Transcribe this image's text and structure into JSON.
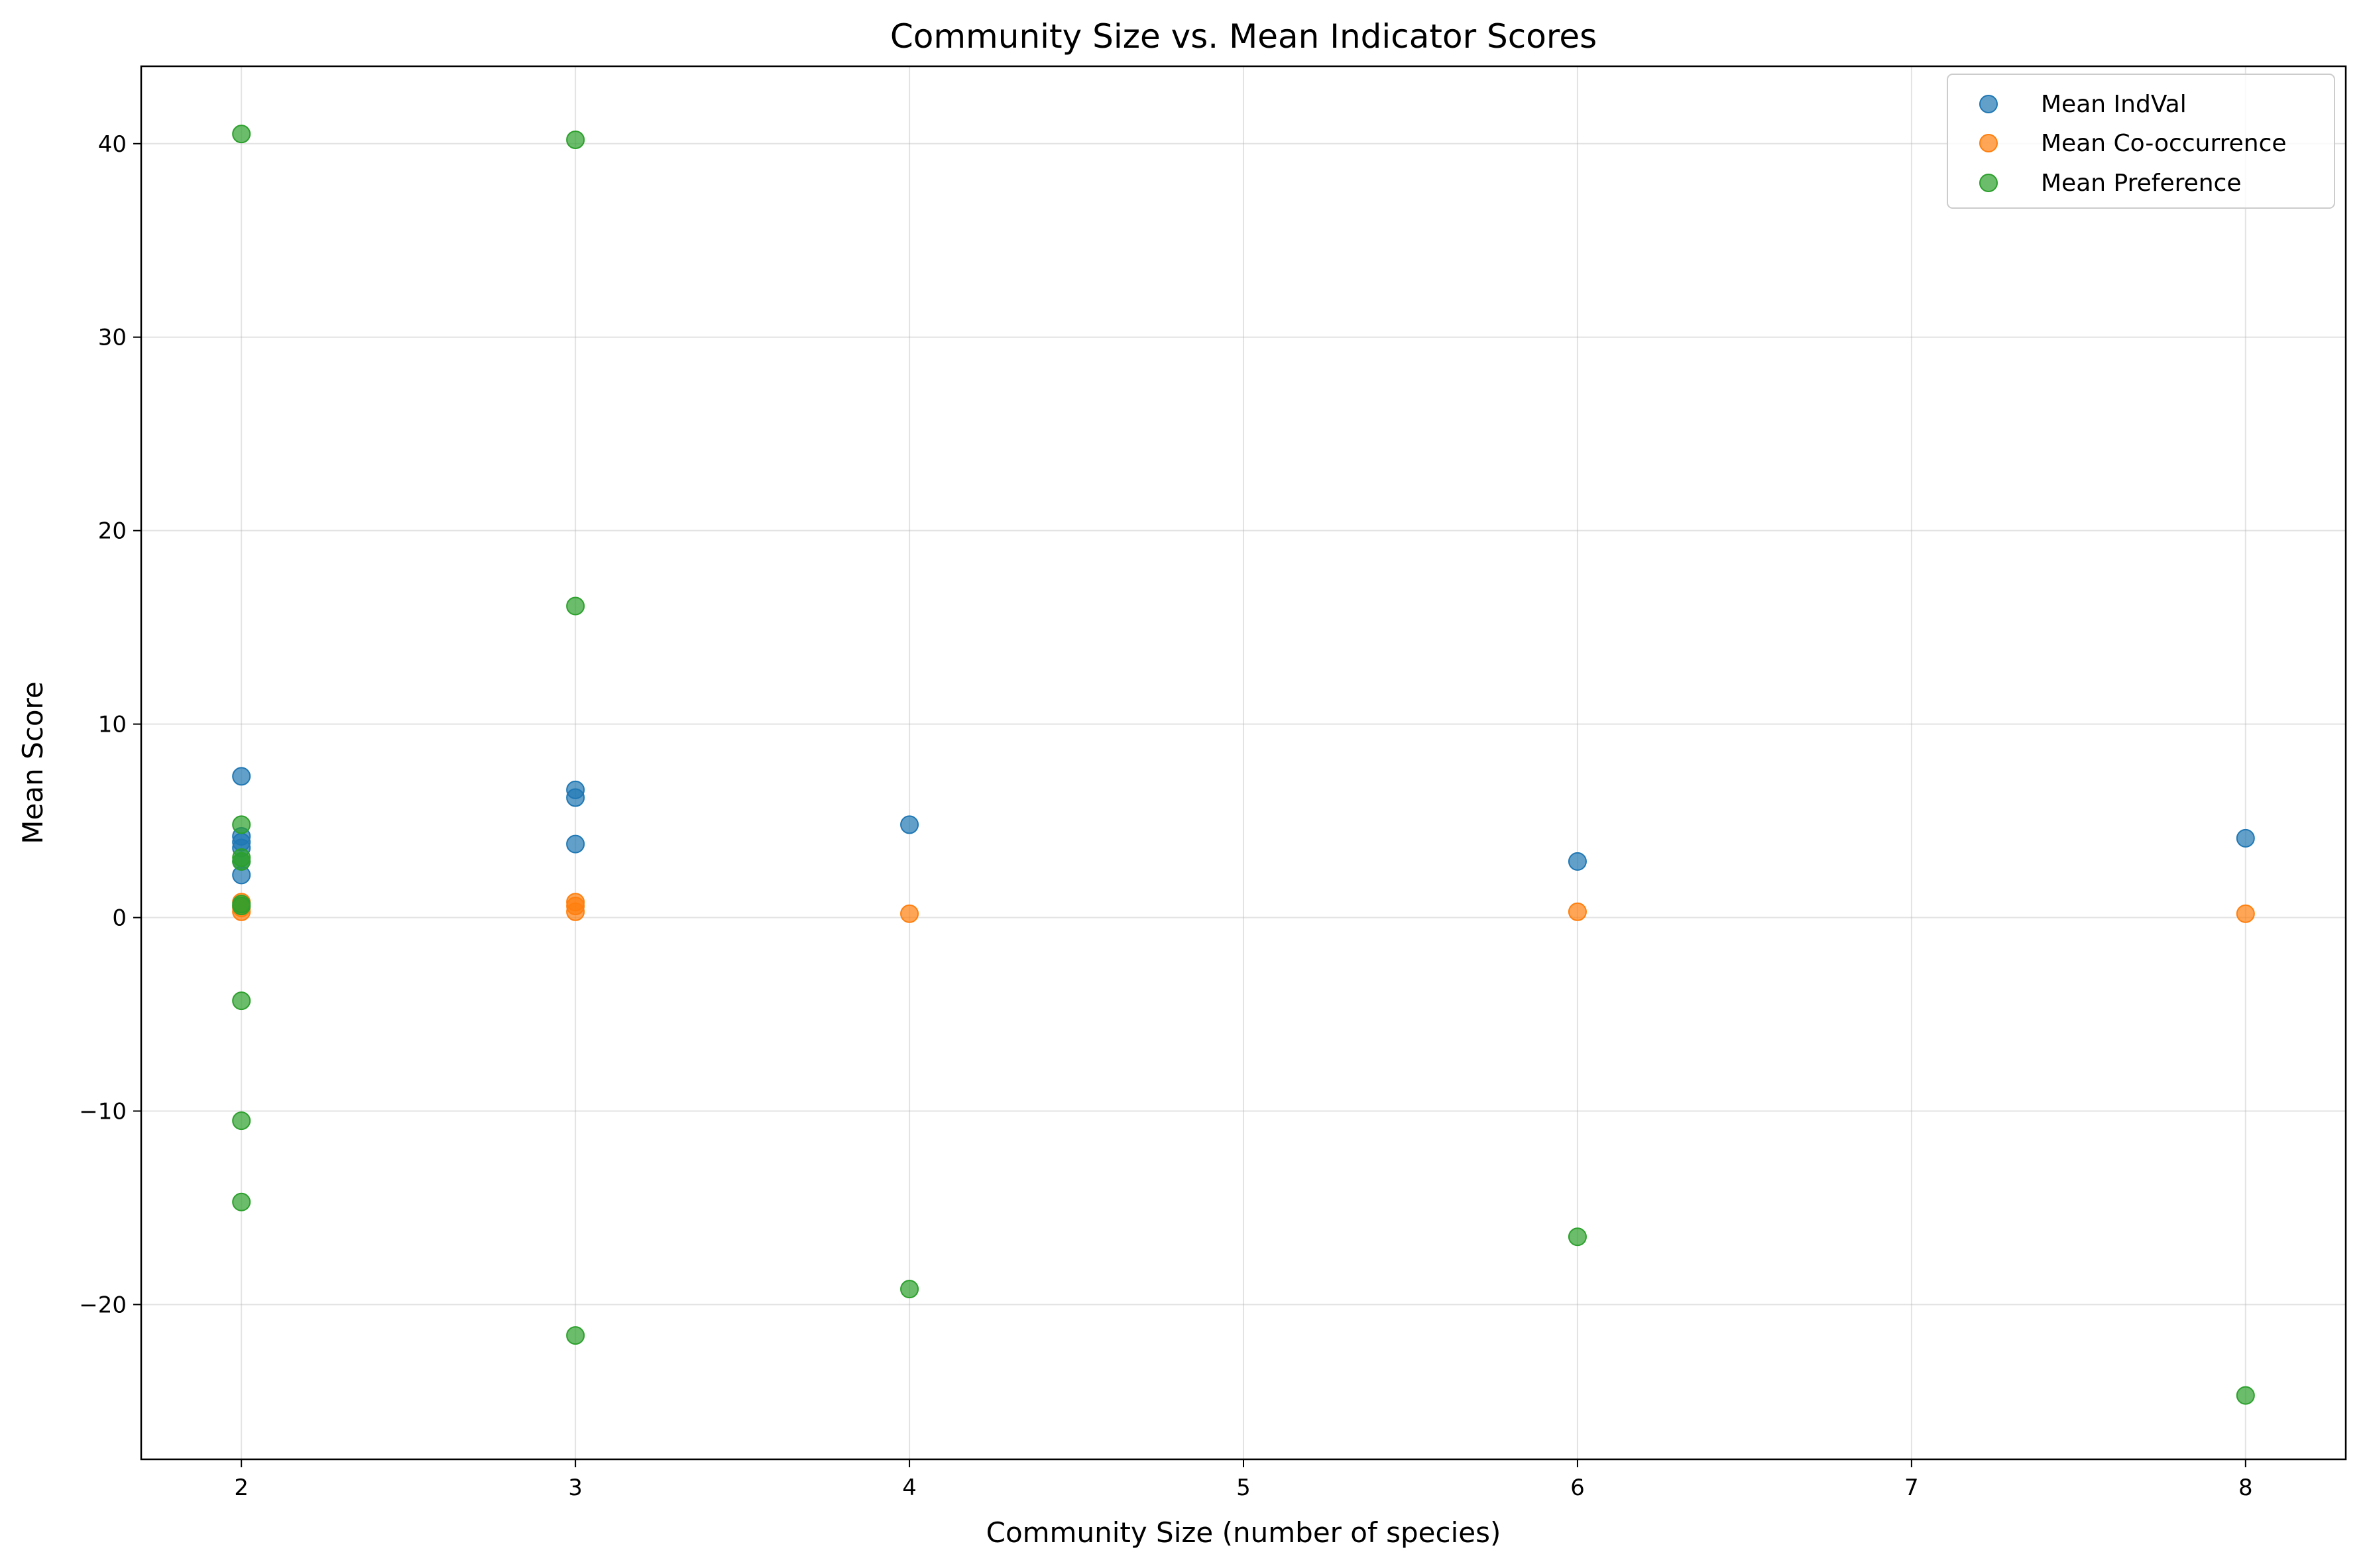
{
  "chart_data": {
    "type": "scatter",
    "title": "Community Size vs. Mean Indicator Scores",
    "xlabel": "Community Size (number of species)",
    "ylabel": "Mean Score",
    "xlim": [
      1.7,
      8.3
    ],
    "ylim": [
      -28,
      44
    ],
    "x_ticks": [
      2,
      3,
      4,
      5,
      6,
      7,
      8
    ],
    "y_ticks": [
      -20,
      -10,
      0,
      10,
      20,
      30,
      40
    ],
    "y_tick_labels": [
      "−20",
      "−10",
      "0",
      "10",
      "20",
      "30",
      "40"
    ],
    "grid": true,
    "legend_position": "top-right",
    "series": [
      {
        "name": "Mean IndVal",
        "color": "#1f77b4",
        "points": [
          [
            2,
            7.3
          ],
          [
            2,
            4.2
          ],
          [
            2,
            3.9
          ],
          [
            2,
            3.6
          ],
          [
            2,
            2.9
          ],
          [
            2,
            2.2
          ],
          [
            3,
            6.6
          ],
          [
            3,
            6.2
          ],
          [
            3,
            3.8
          ],
          [
            4,
            4.8
          ],
          [
            6,
            2.9
          ],
          [
            8,
            4.1
          ]
        ]
      },
      {
        "name": "Mean Co-occurrence",
        "color": "#ff7f0e",
        "points": [
          [
            2,
            0.8
          ],
          [
            2,
            0.6
          ],
          [
            2,
            0.5
          ],
          [
            2,
            0.3
          ],
          [
            3,
            0.8
          ],
          [
            3,
            0.6
          ],
          [
            3,
            0.3
          ],
          [
            4,
            0.2
          ],
          [
            6,
            0.3
          ],
          [
            8,
            0.2
          ]
        ]
      },
      {
        "name": "Mean Preference",
        "color": "#2ca02c",
        "points": [
          [
            2,
            40.5
          ],
          [
            2,
            4.8
          ],
          [
            2,
            3.1
          ],
          [
            2,
            2.9
          ],
          [
            2,
            0.7
          ],
          [
            2,
            0.6
          ],
          [
            2,
            -4.3
          ],
          [
            2,
            -10.5
          ],
          [
            2,
            -14.7
          ],
          [
            3,
            40.2
          ],
          [
            3,
            16.1
          ],
          [
            3,
            -21.6
          ],
          [
            4,
            -19.2
          ],
          [
            6,
            -16.5
          ],
          [
            8,
            -24.7
          ]
        ]
      }
    ]
  }
}
